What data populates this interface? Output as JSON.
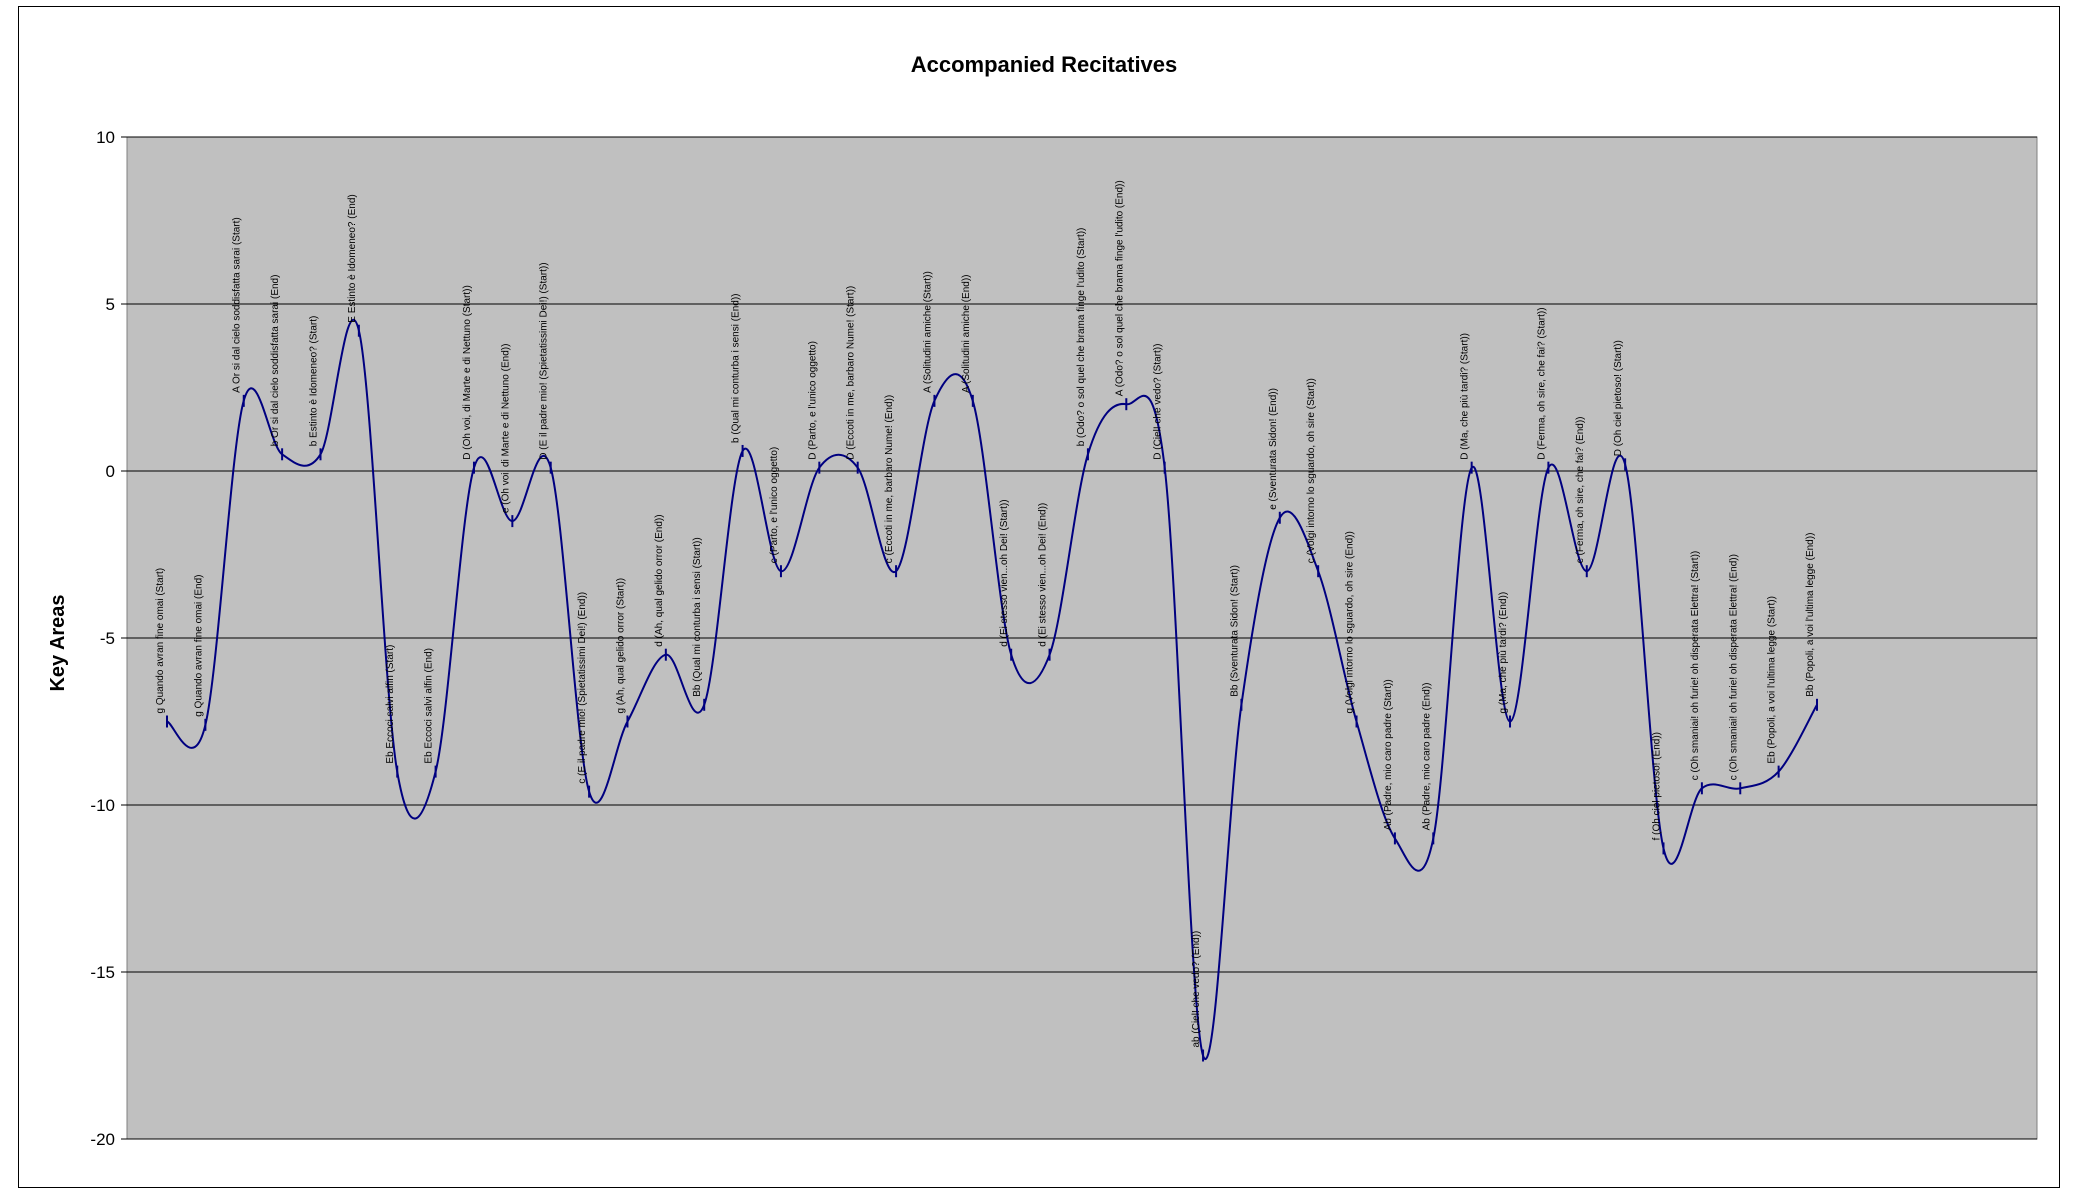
{
  "chart_data": {
    "type": "line",
    "title": "Accompanied Recitatives",
    "xlabel": "",
    "ylabel": "Key Areas",
    "ylim": [
      -20,
      10
    ],
    "yticks": [
      10,
      5,
      0,
      -5,
      -10,
      -15,
      -20
    ],
    "grid": true,
    "legend": "none",
    "colors": {
      "line": "#000080",
      "plot_bg": "#c0c0c0",
      "grid": "#000000"
    },
    "points": [
      {
        "x": 1,
        "y": -7.5,
        "label": "g Quando avran fine omai (Start)"
      },
      {
        "x": 2,
        "y": -7.6,
        "label": "g Quando avran fine omai (End)"
      },
      {
        "x": 3,
        "y": 2.1,
        "label": "A Or si dal cielo soddisfatta sarai (Start)"
      },
      {
        "x": 4,
        "y": 0.5,
        "label": "b Or si dal cielo soddisfatta sarai (End)"
      },
      {
        "x": 5,
        "y": 0.5,
        "label": "b Estinto è Idomeneo? (Start)"
      },
      {
        "x": 6,
        "y": 4.2,
        "label": "E Estinto è Idomeneo? (End)"
      },
      {
        "x": 7,
        "y": -9.0,
        "label": "Eb Eccoci salvi alfin (Start)"
      },
      {
        "x": 8,
        "y": -9.0,
        "label": "Eb Eccoci salvi alfin (End)"
      },
      {
        "x": 9,
        "y": 0.1,
        "label": "D (Oh voi, di Marte e di Nettuno (Start))"
      },
      {
        "x": 10,
        "y": -1.5,
        "label": "e (Oh voi, di Marte e di Nettuno (End))"
      },
      {
        "x": 11,
        "y": 0.1,
        "label": "D (E il padre mio! (Spietatissimi Dei!) (Start))"
      },
      {
        "x": 12,
        "y": -9.6,
        "label": "c (E il padre mio! (Spietatissimi Dei!) (End))"
      },
      {
        "x": 13,
        "y": -7.5,
        "label": "g (Ah, qual gelido orror (Start))"
      },
      {
        "x": 14,
        "y": -5.5,
        "label": "d (Ah, qual gelido orror (End))"
      },
      {
        "x": 15,
        "y": -7.0,
        "label": "Bb (Qual mi conturba i sensi (Start))"
      },
      {
        "x": 16,
        "y": 0.6,
        "label": "b (Qual mi conturba i sensi (End))"
      },
      {
        "x": 17,
        "y": -3.0,
        "label": "c (Parto, e l'unico oggetto)"
      },
      {
        "x": 18,
        "y": 0.1,
        "label": "D (Parto, e l'unico oggetto)"
      },
      {
        "x": 19,
        "y": 0.1,
        "label": "D (Eccoti in me, barbaro Nume! (Start))"
      },
      {
        "x": 20,
        "y": -3.0,
        "label": "c (Eccoti in me, barbaro Nume! (End))"
      },
      {
        "x": 21,
        "y": 2.1,
        "label": "A (Solitudini amiche (Start))"
      },
      {
        "x": 22,
        "y": 2.1,
        "label": "A (Solitudini amiche (End))"
      },
      {
        "x": 23,
        "y": -5.5,
        "label": "d (Ei stesso vien...oh Dei! (Start))"
      },
      {
        "x": 24,
        "y": -5.5,
        "label": "d (Ei stesso vien...oh Dei! (End))"
      },
      {
        "x": 25,
        "y": 0.5,
        "label": "b (Odo? o sol quel che brama finge l'udito (Start))"
      },
      {
        "x": 26,
        "y": 2.0,
        "label": "A (Odo? o sol quel che brama finge l'udito (End))"
      },
      {
        "x": 27,
        "y": 0.1,
        "label": "D (Ciel! che vedo? (Start))"
      },
      {
        "x": 28,
        "y": -17.5,
        "label": "ab (Ciel! che vedo? (End))"
      },
      {
        "x": 29,
        "y": -7.0,
        "label": "Bb (Sventurata Sidon! (Start))"
      },
      {
        "x": 30,
        "y": -1.4,
        "label": "e (Sventurata Sidon! (End))"
      },
      {
        "x": 31,
        "y": -3.0,
        "label": "c (Volgi intorno lo sguardo, oh sire (Start))"
      },
      {
        "x": 32,
        "y": -7.5,
        "label": "g (Volgi intorno lo sguardo, oh sire (End))"
      },
      {
        "x": 33,
        "y": -11.0,
        "label": "Ab (Padre, mio caro padre (Start))"
      },
      {
        "x": 34,
        "y": -11.0,
        "label": "Ab (Padre, mio caro padre (End))"
      },
      {
        "x": 35,
        "y": 0.1,
        "label": "D (Ma, che più tardi? (Start))"
      },
      {
        "x": 36,
        "y": -7.5,
        "label": "g (Ma, che più tardi? (End))"
      },
      {
        "x": 37,
        "y": 0.1,
        "label": "D (Ferma, oh sire, che fai? (Start))"
      },
      {
        "x": 38,
        "y": -3.0,
        "label": "c (Ferma, oh sire, che fai? (End))"
      },
      {
        "x": 39,
        "y": 0.2,
        "label": "D (Oh ciel pietoso! (Start))"
      },
      {
        "x": 40,
        "y": -11.3,
        "label": "f (Oh ciel pietoso! (End))"
      },
      {
        "x": 41,
        "y": -9.5,
        "label": "c (Oh smaniai! oh furie! oh disperata Elettra! (Start))"
      },
      {
        "x": 42,
        "y": -9.5,
        "label": "c (Oh smaniai! oh furie! oh disperata Elettra! (End))"
      },
      {
        "x": 43,
        "y": -9.0,
        "label": "Eb (Popoli, a voi l'ultima legge (Start))"
      },
      {
        "x": 44,
        "y": -7.0,
        "label": "Bb (Popoli, a voi l'ultima legge (End))"
      }
    ]
  }
}
